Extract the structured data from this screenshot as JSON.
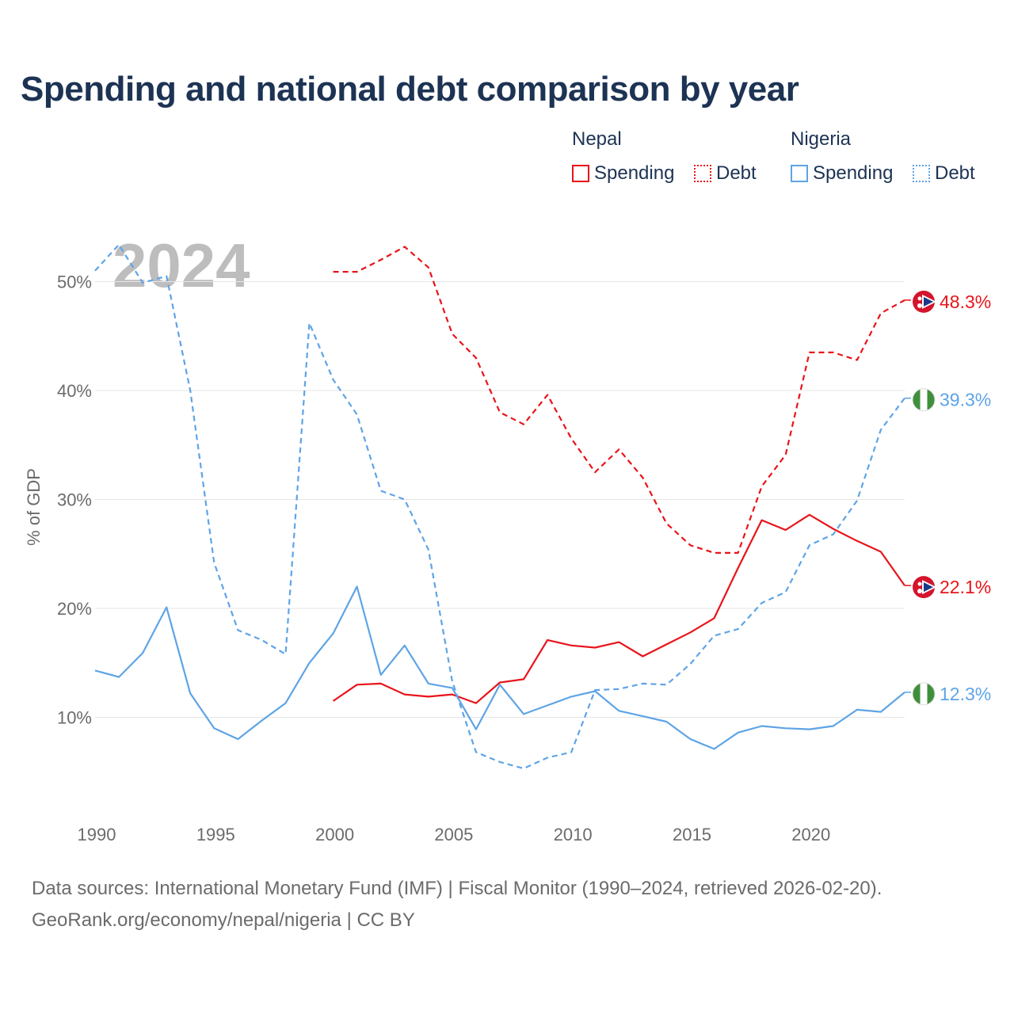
{
  "title": "Spending and national debt comparison by year",
  "legend": {
    "groups": [
      {
        "country": "Nepal",
        "spending": "Spending",
        "debt": "Debt",
        "color": "#e8141a"
      },
      {
        "country": "Nigeria",
        "spending": "Spending",
        "debt": "Debt",
        "color": "#5ea4e6"
      }
    ]
  },
  "year_overlay": "2024",
  "footer": {
    "sources": "Data sources: International Monetary Fund (IMF) | Fiscal Monitor (1990–2024, retrieved 2026-02-20).",
    "credit": "GeoRank.org/economy/nepal/nigeria | CC BY"
  },
  "chart_data": {
    "type": "line",
    "title": "Spending and national debt comparison by year",
    "xlabel": "",
    "ylabel": "% of GDP",
    "xlim": [
      1990,
      2024
    ],
    "ylim": [
      0,
      55
    ],
    "x_ticks": [
      1990,
      1995,
      2000,
      2005,
      2010,
      2015,
      2020
    ],
    "y_ticks": [
      10,
      20,
      30,
      40,
      50
    ],
    "y_tick_labels": [
      "10%",
      "20%",
      "30%",
      "40%",
      "50%"
    ],
    "grid": "horizontal",
    "legend_position": "top-right",
    "series": [
      {
        "name": "Nepal Spending",
        "country": "Nepal",
        "kind": "Spending",
        "color": "#e8141a",
        "dashed": false,
        "flag": "nepal-flag-icon",
        "end_label": "22.1%",
        "x": [
          2000,
          2001,
          2002,
          2003,
          2004,
          2005,
          2006,
          2007,
          2008,
          2009,
          2010,
          2011,
          2012,
          2013,
          2014,
          2015,
          2016,
          2017,
          2018,
          2019,
          2020,
          2021,
          2022,
          2023,
          2024
        ],
        "values": [
          11.5,
          13.0,
          13.1,
          12.1,
          11.9,
          12.1,
          11.3,
          13.2,
          13.5,
          17.1,
          16.6,
          16.4,
          16.9,
          15.6,
          16.7,
          17.8,
          19.1,
          23.7,
          28.1,
          27.2,
          28.6,
          27.3,
          26.2,
          25.2,
          22.1
        ]
      },
      {
        "name": "Nepal Debt",
        "country": "Nepal",
        "kind": "Debt",
        "color": "#e8141a",
        "dashed": true,
        "flag": "nepal-flag-icon",
        "end_label": "48.3%",
        "x": [
          2000,
          2001,
          2002,
          2003,
          2004,
          2005,
          2006,
          2007,
          2008,
          2009,
          2010,
          2011,
          2012,
          2013,
          2014,
          2015,
          2016,
          2017,
          2018,
          2019,
          2020,
          2021,
          2022,
          2023,
          2024
        ],
        "values": [
          50.9,
          50.9,
          52.0,
          53.2,
          51.3,
          45.2,
          43.0,
          38.0,
          36.9,
          39.6,
          35.6,
          32.5,
          34.6,
          32.0,
          27.8,
          25.8,
          25.1,
          25.1,
          31.2,
          34.1,
          43.5,
          43.5,
          42.8,
          47.1,
          48.3
        ]
      },
      {
        "name": "Nigeria Spending",
        "country": "Nigeria",
        "kind": "Spending",
        "color": "#5ea4e6",
        "dashed": false,
        "flag": "nigeria-flag-icon",
        "end_label": "12.3%",
        "x": [
          1990,
          1991,
          1992,
          1993,
          1994,
          1995,
          1996,
          1997,
          1998,
          1999,
          2000,
          2001,
          2002,
          2003,
          2004,
          2005,
          2006,
          2007,
          2008,
          2009,
          2010,
          2011,
          2012,
          2013,
          2014,
          2015,
          2016,
          2017,
          2018,
          2019,
          2020,
          2021,
          2022,
          2023,
          2024
        ],
        "values": [
          14.3,
          13.7,
          15.9,
          20.1,
          12.2,
          9.0,
          8.0,
          9.7,
          11.3,
          15.0,
          17.7,
          22.0,
          13.9,
          16.6,
          13.1,
          12.7,
          8.9,
          13.0,
          10.3,
          11.1,
          11.9,
          12.4,
          10.6,
          10.1,
          9.6,
          8.0,
          7.1,
          8.6,
          9.2,
          9.0,
          8.9,
          9.2,
          10.7,
          10.5,
          12.3
        ]
      },
      {
        "name": "Nigeria Debt",
        "country": "Nigeria",
        "kind": "Debt",
        "color": "#5ea4e6",
        "dashed": true,
        "flag": "nigeria-flag-icon",
        "end_label": "39.3%",
        "x": [
          1990,
          1991,
          1992,
          1993,
          1994,
          1995,
          1996,
          1997,
          1998,
          1999,
          2000,
          2001,
          2002,
          2003,
          2004,
          2005,
          2006,
          2007,
          2008,
          2009,
          2010,
          2011,
          2012,
          2013,
          2014,
          2015,
          2016,
          2017,
          2018,
          2019,
          2020,
          2021,
          2022,
          2023,
          2024
        ],
        "values": [
          51.0,
          53.4,
          49.9,
          50.5,
          40.0,
          24.2,
          18.0,
          17.1,
          15.8,
          46.2,
          41.0,
          37.8,
          30.8,
          30.0,
          25.4,
          13.3,
          6.8,
          5.9,
          5.3,
          6.3,
          6.8,
          12.5,
          12.6,
          13.1,
          13.0,
          14.9,
          17.5,
          18.1,
          20.5,
          21.5,
          25.8,
          26.8,
          29.9,
          36.4,
          39.3
        ]
      }
    ]
  }
}
